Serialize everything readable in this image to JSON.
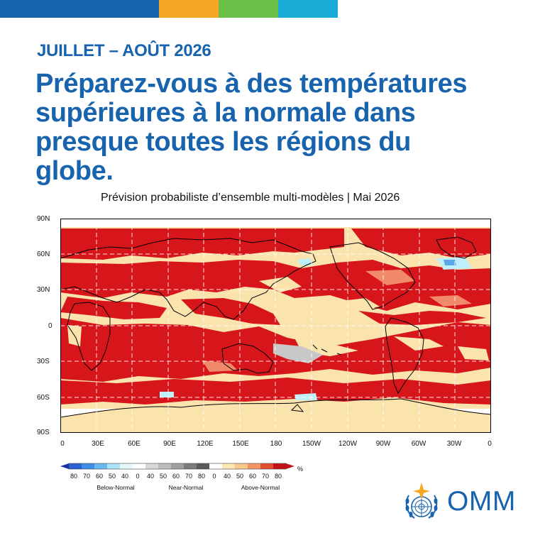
{
  "topbar_colors": [
    "#1763ad",
    "#f5a623",
    "#6cc04a",
    "#1ba9d6"
  ],
  "eyebrow": "JUILLET – AOÛT 2026",
  "headline": "Préparez-vous à des températures supérieures à la normale dans presque toutes les régions du globe.",
  "subtitle": "Prévision probabiliste d’ensemble multi-modèles | Mai 2026",
  "map": {
    "lat_ticks": [
      "90N",
      "60N",
      "30N",
      "0",
      "30S",
      "60S",
      "90S"
    ],
    "lon_ticks": [
      "0",
      "30E",
      "60E",
      "90E",
      "120E",
      "150E",
      "180",
      "150W",
      "120W",
      "90W",
      "60W",
      "30W",
      "0"
    ],
    "colors": {
      "above_strong": "#d7161b",
      "above_mid": "#f08a6a",
      "above_weak": "#fbe3ae",
      "near": "#c8c8c8",
      "below": "#bfeffb",
      "below_strong": "#5aa7e8",
      "polar": "#ffffff",
      "coast": "#000000"
    }
  },
  "legend": {
    "below_ticks": [
      "80",
      "70",
      "60",
      "50",
      "40"
    ],
    "near_ticks": [
      "0",
      "40",
      "50",
      "60",
      "70",
      "80"
    ],
    "above_ticks": [
      "0",
      "40",
      "50",
      "60",
      "70",
      "80"
    ],
    "unit": "%",
    "below_label": "Below-Normal",
    "near_label": "Near-Normal",
    "above_label": "Above-Normal",
    "below_colors": [
      "#1a2fa8",
      "#2a62d6",
      "#3c8ee6",
      "#6ab8f2",
      "#a6e3f7",
      "#e6f8fc"
    ],
    "near_colors": [
      "#ffffff",
      "#d9d9d9",
      "#bdbdbd",
      "#a0a0a0",
      "#7c7c7c",
      "#5a5a5a"
    ],
    "above_colors": [
      "#ffffff",
      "#fbe8b5",
      "#f8c98c",
      "#f29463",
      "#e34c31",
      "#c3111a"
    ]
  },
  "logo": {
    "text": "OMM"
  }
}
